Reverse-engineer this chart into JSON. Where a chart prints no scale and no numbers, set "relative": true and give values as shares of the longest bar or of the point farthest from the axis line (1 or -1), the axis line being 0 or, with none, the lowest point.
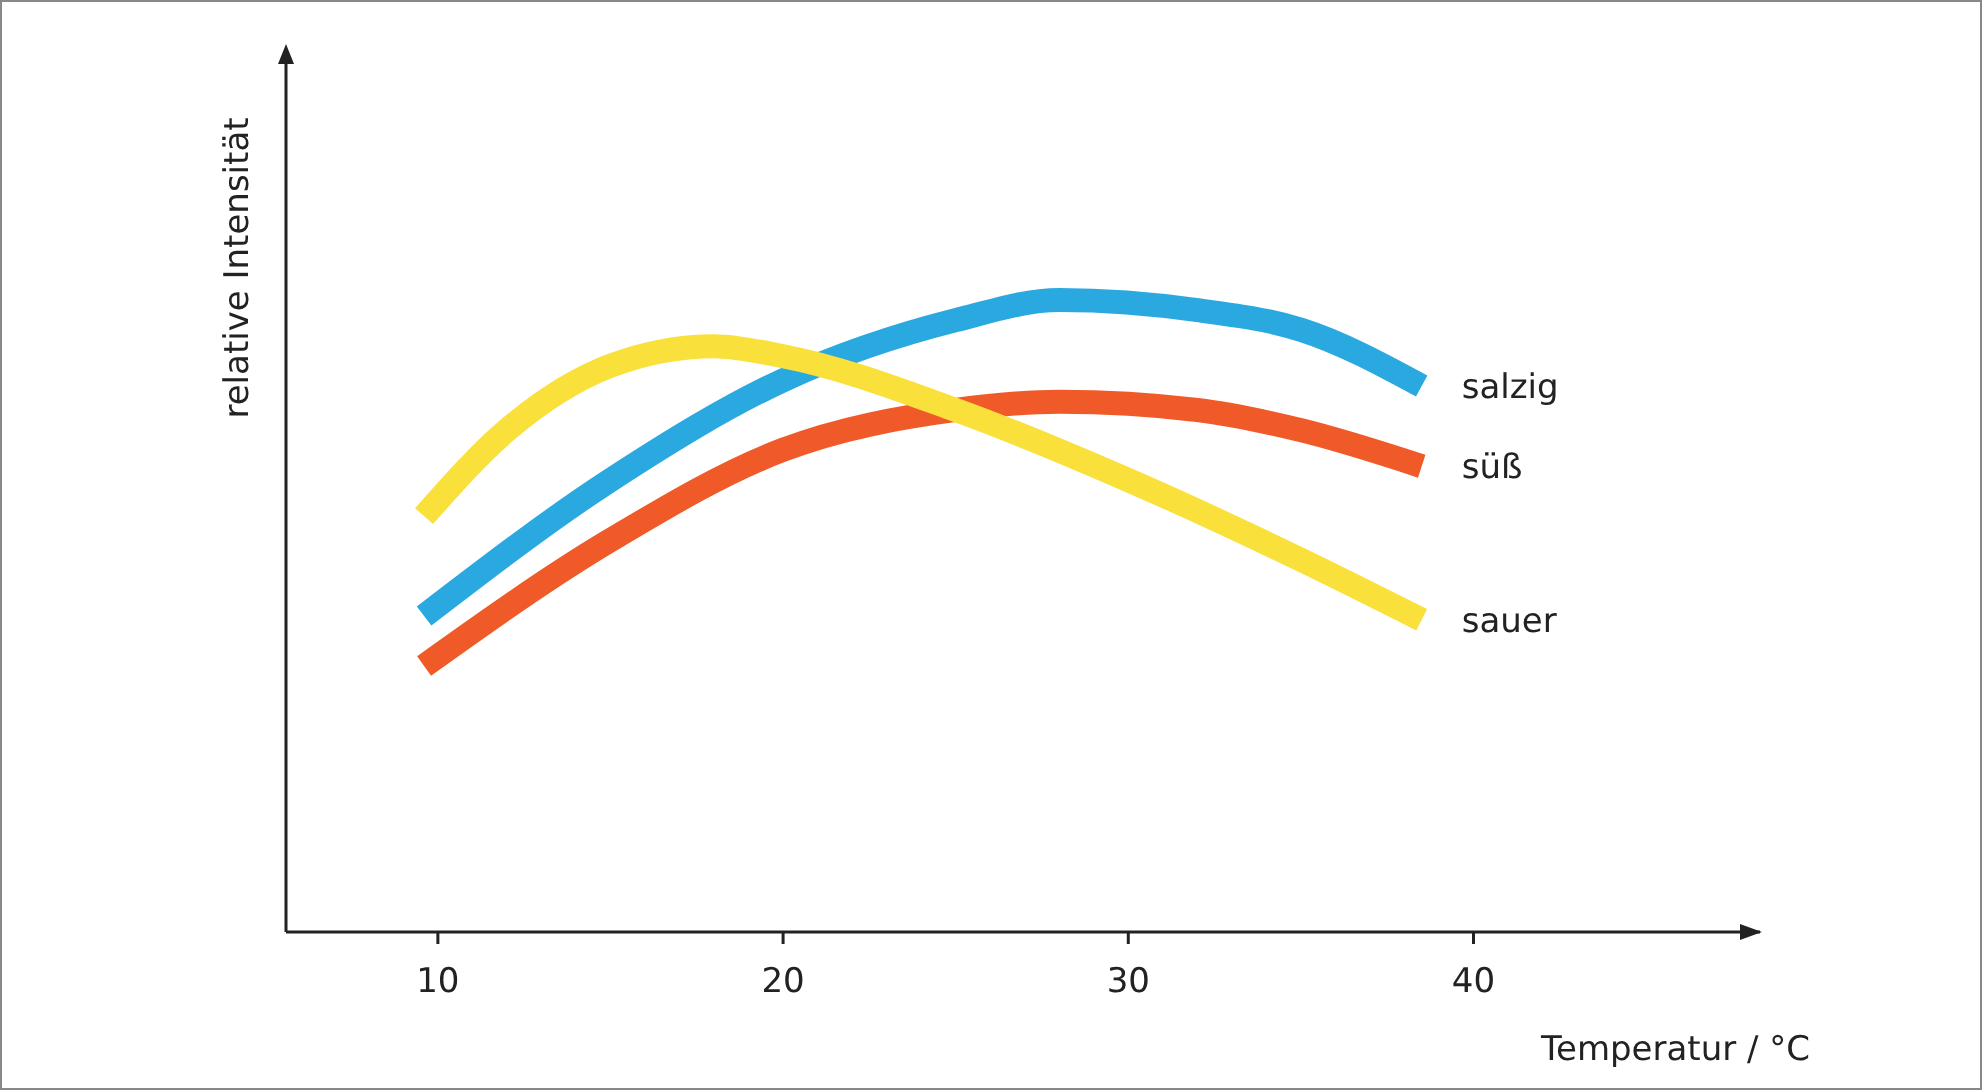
{
  "chart_data": {
    "type": "line",
    "relative": true,
    "xlabel": "Temperatur / °C",
    "ylabel": "relative Intensität",
    "xlim": [
      5.6,
      48.3
    ],
    "xticks": [
      10,
      20,
      30,
      40
    ],
    "series": [
      {
        "name": "salzig",
        "color": "#2aa9e0",
        "x": [
          9.6,
          15,
          20,
          25,
          28,
          32,
          35,
          38.5
        ],
        "values": [
          0.5,
          0.715,
          0.873,
          0.968,
          1,
          0.984,
          0.953,
          0.864
        ]
      },
      {
        "name": "süß",
        "color": "#f05a28",
        "x": [
          9.6,
          15,
          20,
          25,
          28,
          32,
          35,
          38.5
        ],
        "values": [
          0.421,
          0.62,
          0.763,
          0.826,
          0.839,
          0.826,
          0.794,
          0.737
        ]
      },
      {
        "name": "sauer",
        "color": "#f9e03a",
        "x": [
          9.6,
          12,
          15,
          18,
          20,
          25,
          30,
          35,
          38.5
        ],
        "values": [
          0.658,
          0.794,
          0.896,
          0.927,
          0.911,
          0.826,
          0.715,
          0.589,
          0.494
        ]
      }
    ]
  }
}
